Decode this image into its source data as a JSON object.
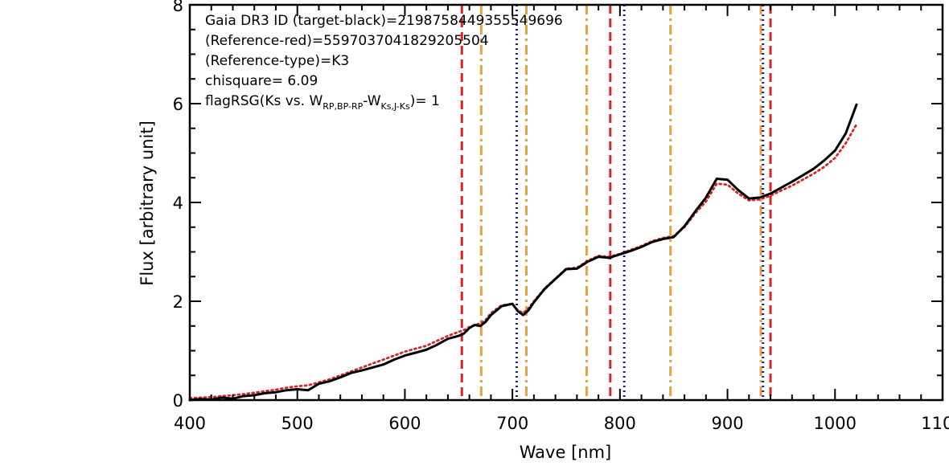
{
  "chart_data": {
    "type": "line",
    "xlabel": "Wave [nm]",
    "ylabel": "Flux [arbitrary unit]",
    "xlim": [
      400,
      1100
    ],
    "ylim": [
      0,
      8
    ],
    "x_ticks": [
      "400",
      "500",
      "600",
      "700",
      "800",
      "900",
      "1000",
      "1100"
    ],
    "y_ticks": [
      "0",
      "2",
      "4",
      "6",
      "8"
    ],
    "grid": false,
    "annotations": [
      "Gaia DR3 ID (target-black)=2198758449355549696",
      "(Reference-red)=5597037041829205504",
      "(Reference-type)=K3",
      "chisquare= 6.09"
    ],
    "flag_label": {
      "prefix": "flagRSG(Ks vs. W",
      "sub1": "RP,BP-RP",
      "middle": "-W",
      "sub2": "Ks,J-Ks",
      "suffix": ")= 1"
    },
    "series": [
      {
        "style": "solid",
        "color": "#000000",
        "x": [
          400,
          410,
          420,
          430,
          440,
          450,
          460,
          470,
          480,
          490,
          500,
          510,
          520,
          530,
          540,
          550,
          560,
          570,
          580,
          590,
          600,
          610,
          620,
          630,
          640,
          650,
          655,
          660,
          665,
          670,
          675,
          680,
          690,
          700,
          705,
          710,
          715,
          720,
          730,
          740,
          750,
          760,
          770,
          780,
          790,
          800,
          810,
          820,
          830,
          840,
          850,
          860,
          870,
          880,
          890,
          900,
          910,
          920,
          930,
          940,
          950,
          960,
          970,
          980,
          990,
          1000,
          1010,
          1020
        ],
        "y": [
          0.0,
          0.02,
          0.01,
          0.05,
          0.03,
          0.08,
          0.1,
          0.14,
          0.16,
          0.2,
          0.22,
          0.2,
          0.33,
          0.38,
          0.46,
          0.55,
          0.6,
          0.66,
          0.72,
          0.82,
          0.9,
          0.96,
          1.02,
          1.12,
          1.24,
          1.3,
          1.35,
          1.46,
          1.52,
          1.5,
          1.58,
          1.72,
          1.9,
          1.95,
          1.8,
          1.72,
          1.82,
          1.98,
          2.25,
          2.45,
          2.65,
          2.66,
          2.8,
          2.9,
          2.88,
          2.95,
          3.02,
          3.1,
          3.2,
          3.26,
          3.3,
          3.52,
          3.82,
          4.1,
          4.48,
          4.46,
          4.25,
          4.08,
          4.1,
          4.18,
          4.3,
          4.42,
          4.55,
          4.68,
          4.85,
          5.05,
          5.4,
          5.98
        ]
      },
      {
        "style": "dotted",
        "color": "#d62728",
        "x": [
          400,
          410,
          420,
          430,
          440,
          450,
          460,
          470,
          480,
          490,
          500,
          510,
          520,
          530,
          540,
          550,
          560,
          570,
          580,
          590,
          600,
          610,
          620,
          630,
          640,
          650,
          655,
          660,
          665,
          670,
          675,
          680,
          690,
          700,
          705,
          710,
          715,
          720,
          730,
          740,
          750,
          760,
          770,
          780,
          790,
          800,
          810,
          820,
          830,
          840,
          850,
          860,
          870,
          880,
          890,
          900,
          910,
          920,
          930,
          940,
          950,
          960,
          970,
          980,
          990,
          1000,
          1010,
          1020
        ],
        "y": [
          0.04,
          0.05,
          0.06,
          0.08,
          0.1,
          0.12,
          0.15,
          0.18,
          0.21,
          0.25,
          0.28,
          0.3,
          0.36,
          0.42,
          0.5,
          0.58,
          0.66,
          0.74,
          0.82,
          0.9,
          0.98,
          1.04,
          1.1,
          1.2,
          1.3,
          1.38,
          1.42,
          1.48,
          1.52,
          1.55,
          1.62,
          1.76,
          1.92,
          1.94,
          1.82,
          1.76,
          1.86,
          2.0,
          2.26,
          2.46,
          2.66,
          2.68,
          2.82,
          2.92,
          2.9,
          2.96,
          3.04,
          3.12,
          3.22,
          3.28,
          3.32,
          3.5,
          3.78,
          4.02,
          4.38,
          4.36,
          4.18,
          4.04,
          4.06,
          4.14,
          4.24,
          4.34,
          4.46,
          4.58,
          4.72,
          4.9,
          5.2,
          5.58
        ]
      }
    ],
    "vlines": [
      {
        "x": 653,
        "style": "dashed",
        "color": "#d62728"
      },
      {
        "x": 671,
        "style": "dashdot",
        "color": "#e6a23c"
      },
      {
        "x": 704,
        "style": "dotted",
        "color": "#1f1f8f"
      },
      {
        "x": 713,
        "style": "dashdot",
        "color": "#e6a23c"
      },
      {
        "x": 769,
        "style": "dashdot",
        "color": "#e6a23c"
      },
      {
        "x": 791,
        "style": "dashed",
        "color": "#d62728"
      },
      {
        "x": 804,
        "style": "dotted",
        "color": "#1f1f8f"
      },
      {
        "x": 847,
        "style": "dashdot",
        "color": "#e6a23c"
      },
      {
        "x": 931,
        "style": "dashdot",
        "color": "#e6a23c"
      },
      {
        "x": 933,
        "style": "dotted",
        "color": "#1f1f8f"
      },
      {
        "x": 940,
        "style": "dashed",
        "color": "#d62728"
      }
    ]
  }
}
